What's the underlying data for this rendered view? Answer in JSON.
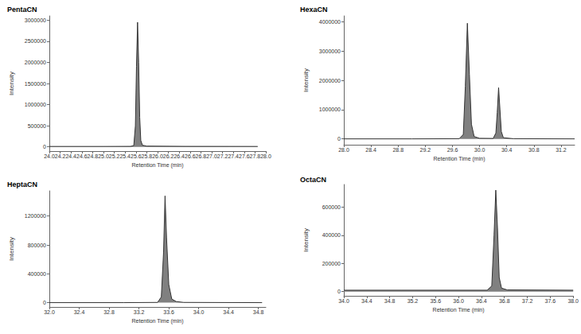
{
  "chart_data": [
    {
      "type": "area",
      "title": "PentaCN",
      "x_label": "Retention Time (min)",
      "y_label": "Intensity",
      "color": "#808080",
      "grid": false,
      "x": [
        24.0,
        25.0,
        25.5,
        25.56,
        25.59,
        25.61,
        25.63,
        25.65,
        25.67,
        25.69,
        25.72,
        25.8,
        26.5,
        27.85
      ],
      "values": [
        10000,
        10000,
        12000,
        30000,
        500000,
        1900000,
        2950000,
        2000000,
        700000,
        150000,
        40000,
        18000,
        12000,
        10000
      ],
      "xlim": [
        24,
        28
      ],
      "xticks": [
        {
          "value": 24,
          "label": "24.0"
        },
        24.2,
        24.4,
        24.6,
        24.8,
        {
          "value": 25,
          "label": "25.0"
        },
        25.2,
        25.4,
        25.6,
        25.8,
        {
          "value": 26,
          "label": "26.0"
        },
        26.2,
        26.4,
        26.6,
        26.8,
        {
          "value": 27,
          "label": "27.0"
        },
        27.2,
        27.4,
        27.6,
        27.8,
        {
          "value": 28,
          "label": "28.0"
        }
      ],
      "ylim": [
        -100000,
        3100000
      ],
      "yticks": [
        0,
        500000,
        1000000,
        1500000,
        2000000,
        2500000,
        3000000
      ]
    },
    {
      "type": "area",
      "title": "HexaCN",
      "x_label": "Retention Time (min)",
      "y_label": "Intensity",
      "color": "#808080",
      "grid": false,
      "x": [
        28.0,
        29.0,
        29.7,
        29.76,
        29.79,
        29.82,
        29.85,
        29.88,
        29.92,
        30.0,
        30.2,
        30.24,
        30.26,
        30.28,
        30.3,
        30.32,
        30.35,
        30.5,
        31.4
      ],
      "values": [
        0,
        0,
        5000,
        150000,
        1800000,
        3950000,
        2200000,
        500000,
        80000,
        20000,
        15000,
        200000,
        900000,
        1750000,
        1000000,
        250000,
        40000,
        5000,
        0
      ],
      "xlim": [
        28,
        31.4
      ],
      "xticks": [
        {
          "value": 28,
          "label": "28.0"
        },
        28.4,
        28.8,
        29.2,
        29.6,
        {
          "value": 30,
          "label": "30.0"
        },
        30.4,
        30.8,
        31.2
      ],
      "ylim": [
        -200000,
        4200000
      ],
      "yticks": [
        0,
        1000000,
        2000000,
        3000000,
        4000000
      ]
    },
    {
      "type": "area",
      "title": "HeptaCN",
      "x_label": "Retention Time (min)",
      "y_label": "Intensity",
      "color": "#808080",
      "grid": false,
      "x": [
        32.0,
        33.0,
        33.45,
        33.5,
        33.53,
        33.55,
        33.57,
        33.6,
        33.64,
        33.7,
        33.8,
        34.85
      ],
      "values": [
        0,
        0,
        3000,
        80000,
        700000,
        1480000,
        900000,
        250000,
        50000,
        15000,
        3000,
        0
      ],
      "xlim": [
        32,
        34.9
      ],
      "xticks": [
        {
          "value": 32,
          "label": "32.0"
        },
        32.4,
        32.8,
        33.2,
        33.6,
        {
          "value": 34,
          "label": "34.0"
        },
        34.4,
        34.8
      ],
      "ylim": [
        -60000,
        1550000
      ],
      "yticks": [
        0,
        400000,
        800000,
        1200000
      ]
    },
    {
      "type": "area",
      "title": "OctaCN",
      "x_label": "Retention Time (min)",
      "y_label": "Intensity",
      "color": "#808080",
      "grid": false,
      "x": [
        34.0,
        35.0,
        36.5,
        36.58,
        36.62,
        36.65,
        36.68,
        36.71,
        36.75,
        36.85,
        38.0
      ],
      "values": [
        10000,
        10000,
        10000,
        40000,
        400000,
        720000,
        450000,
        100000,
        25000,
        12000,
        10000
      ],
      "xlim": [
        34,
        38
      ],
      "xticks": [
        {
          "value": 34,
          "label": "34.0"
        },
        34.4,
        34.8,
        35.2,
        35.6,
        {
          "value": 36,
          "label": "36.0"
        },
        36.4,
        36.8,
        37.2,
        37.6,
        {
          "value": 38,
          "label": "38.0"
        }
      ],
      "ylim": [
        -30000,
        760000
      ],
      "yticks": [
        0,
        200000,
        400000,
        600000
      ]
    }
  ]
}
